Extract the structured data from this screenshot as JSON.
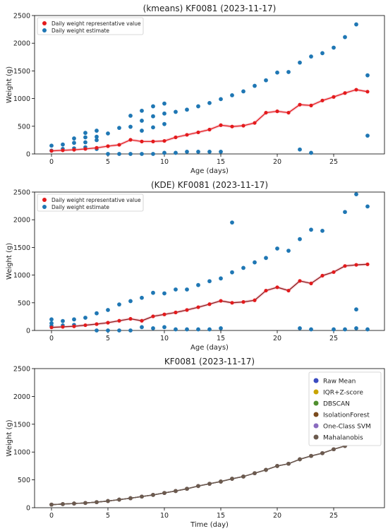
{
  "chart_data": [
    {
      "type": "scatter",
      "title": "(kmeans) KF0081 (2023-11-17)",
      "xlabel": "Age (days)",
      "ylabel": "Weight (g)",
      "xlim": [
        -1.5,
        29.5
      ],
      "ylim": [
        0,
        2500
      ],
      "xticks": [
        0,
        5,
        10,
        15,
        20,
        25
      ],
      "yticks": [
        0,
        500,
        1000,
        1500,
        2000,
        2500
      ],
      "grid": false,
      "legend_position": "top-left",
      "series": [
        {
          "name": "Daily weight representative value",
          "kind": "line+markers",
          "color": "#e41a1c",
          "points": [
            [
              0,
              55
            ],
            [
              1,
              65
            ],
            [
              2,
              75
            ],
            [
              3,
              90
            ],
            [
              4,
              110
            ],
            [
              5,
              140
            ],
            [
              6,
              165
            ],
            [
              7,
              255
            ],
            [
              8,
              225
            ],
            [
              9,
              225
            ],
            [
              10,
              235
            ],
            [
              11,
              300
            ],
            [
              12,
              345
            ],
            [
              13,
              390
            ],
            [
              14,
              440
            ],
            [
              15,
              520
            ],
            [
              16,
              495
            ],
            [
              17,
              510
            ],
            [
              18,
              560
            ],
            [
              19,
              745
            ],
            [
              20,
              770
            ],
            [
              21,
              745
            ],
            [
              22,
              890
            ],
            [
              23,
              875
            ],
            [
              24,
              965
            ],
            [
              25,
              1030
            ],
            [
              26,
              1100
            ],
            [
              27,
              1160
            ],
            [
              28,
              1125
            ]
          ]
        },
        {
          "name": "Daily weight estimate",
          "kind": "scatter",
          "color": "#1f77b4",
          "points": [
            [
              0,
              60
            ],
            [
              0,
              150
            ],
            [
              1,
              90
            ],
            [
              1,
              170
            ],
            [
              2,
              100
            ],
            [
              2,
              200
            ],
            [
              2,
              280
            ],
            [
              3,
              120
            ],
            [
              3,
              210
            ],
            [
              3,
              300
            ],
            [
              3,
              380
            ],
            [
              4,
              90
            ],
            [
              4,
              250
            ],
            [
              4,
              310
            ],
            [
              4,
              420
            ],
            [
              5,
              0
            ],
            [
              5,
              370
            ],
            [
              6,
              0
            ],
            [
              6,
              470
            ],
            [
              7,
              0
            ],
            [
              7,
              490
            ],
            [
              7,
              690
            ],
            [
              8,
              0
            ],
            [
              8,
              420
            ],
            [
              8,
              600
            ],
            [
              8,
              780
            ],
            [
              9,
              0
            ],
            [
              9,
              480
            ],
            [
              9,
              680
            ],
            [
              9,
              860
            ],
            [
              10,
              20
            ],
            [
              10,
              540
            ],
            [
              10,
              730
            ],
            [
              10,
              910
            ],
            [
              11,
              20
            ],
            [
              11,
              760
            ],
            [
              12,
              40
            ],
            [
              12,
              800
            ],
            [
              13,
              40
            ],
            [
              13,
              860
            ],
            [
              14,
              40
            ],
            [
              14,
              920
            ],
            [
              15,
              40
            ],
            [
              15,
              990
            ],
            [
              16,
              1060
            ],
            [
              17,
              1130
            ],
            [
              18,
              1230
            ],
            [
              19,
              1330
            ],
            [
              20,
              1470
            ],
            [
              21,
              1480
            ],
            [
              22,
              80
            ],
            [
              22,
              1650
            ],
            [
              23,
              20
            ],
            [
              23,
              1760
            ],
            [
              24,
              1820
            ],
            [
              25,
              1920
            ],
            [
              26,
              2110
            ],
            [
              27,
              2340
            ],
            [
              28,
              330
            ],
            [
              28,
              1420
            ]
          ]
        }
      ]
    },
    {
      "type": "scatter",
      "title": "(KDE) KF0081 (2023-11-17)",
      "xlabel": "Age (days)",
      "ylabel": "Weight (g)",
      "xlim": [
        -1.5,
        29.5
      ],
      "ylim": [
        0,
        2500
      ],
      "xticks": [
        0,
        5,
        10,
        15,
        20,
        25
      ],
      "yticks": [
        0,
        500,
        1000,
        1500,
        2000,
        2500
      ],
      "grid": false,
      "legend_position": "top-left",
      "series": [
        {
          "name": "Daily weight representative value",
          "kind": "line+markers",
          "color": "#e41a1c",
          "line_color": "#8b1a1a",
          "points": [
            [
              0,
              55
            ],
            [
              1,
              65
            ],
            [
              2,
              75
            ],
            [
              3,
              95
            ],
            [
              4,
              115
            ],
            [
              5,
              140
            ],
            [
              6,
              175
            ],
            [
              7,
              210
            ],
            [
              8,
              175
            ],
            [
              9,
              255
            ],
            [
              10,
              290
            ],
            [
              11,
              325
            ],
            [
              12,
              370
            ],
            [
              13,
              420
            ],
            [
              14,
              475
            ],
            [
              15,
              535
            ],
            [
              16,
              500
            ],
            [
              17,
              515
            ],
            [
              18,
              545
            ],
            [
              19,
              720
            ],
            [
              20,
              780
            ],
            [
              21,
              720
            ],
            [
              22,
              895
            ],
            [
              23,
              850
            ],
            [
              24,
              990
            ],
            [
              25,
              1055
            ],
            [
              26,
              1165
            ],
            [
              27,
              1185
            ],
            [
              28,
              1195
            ]
          ]
        },
        {
          "name": "Daily weight estimate",
          "kind": "scatter",
          "color": "#1f77b4",
          "points": [
            [
              0,
              80
            ],
            [
              0,
              130
            ],
            [
              0,
              200
            ],
            [
              1,
              90
            ],
            [
              1,
              170
            ],
            [
              2,
              100
            ],
            [
              2,
              200
            ],
            [
              3,
              230
            ],
            [
              4,
              0
            ],
            [
              4,
              310
            ],
            [
              5,
              0
            ],
            [
              5,
              370
            ],
            [
              6,
              0
            ],
            [
              6,
              470
            ],
            [
              7,
              0
            ],
            [
              7,
              530
            ],
            [
              8,
              60
            ],
            [
              8,
              590
            ],
            [
              9,
              40
            ],
            [
              9,
              680
            ],
            [
              10,
              60
            ],
            [
              10,
              670
            ],
            [
              11,
              20
            ],
            [
              11,
              740
            ],
            [
              12,
              20
            ],
            [
              12,
              740
            ],
            [
              13,
              20
            ],
            [
              13,
              820
            ],
            [
              14,
              20
            ],
            [
              14,
              890
            ],
            [
              15,
              40
            ],
            [
              15,
              940
            ],
            [
              16,
              1050
            ],
            [
              16,
              1950
            ],
            [
              17,
              1130
            ],
            [
              18,
              1230
            ],
            [
              19,
              1310
            ],
            [
              20,
              1480
            ],
            [
              21,
              1440
            ],
            [
              22,
              40
            ],
            [
              22,
              1650
            ],
            [
              23,
              20
            ],
            [
              23,
              1820
            ],
            [
              24,
              1800
            ],
            [
              25,
              20
            ],
            [
              26,
              20
            ],
            [
              26,
              2140
            ],
            [
              27,
              40
            ],
            [
              27,
              380
            ],
            [
              27,
              2460
            ],
            [
              28,
              20
            ],
            [
              28,
              2240
            ]
          ]
        }
      ]
    },
    {
      "type": "line",
      "title": "KF0081 (2023-11-17)",
      "xlabel": "Time (day)",
      "ylabel": "Weight (g)",
      "xlim": [
        -1.5,
        29.5
      ],
      "ylim": [
        0,
        2500
      ],
      "xticks": [
        0,
        5,
        10,
        15,
        20,
        25
      ],
      "yticks": [
        0,
        500,
        1000,
        1500,
        2000,
        2500
      ],
      "grid": false,
      "legend_position": "top-right",
      "x": [
        0,
        1,
        2,
        3,
        4,
        5,
        6,
        7,
        8,
        9,
        10,
        11,
        12,
        13,
        14,
        15,
        16,
        17,
        18,
        19,
        20,
        21,
        22,
        23,
        24,
        25,
        26,
        27,
        28
      ],
      "series": [
        {
          "name": "Raw Mean",
          "color": "#3b4cc0",
          "values": [
            55,
            65,
            75,
            85,
            100,
            120,
            145,
            170,
            200,
            230,
            265,
            300,
            340,
            390,
            430,
            470,
            520,
            560,
            620,
            680,
            750,
            790,
            870,
            930,
            980,
            1050,
            1110,
            1170,
            1260
          ]
        },
        {
          "name": "IQR+Z-score",
          "color": "#c9a400",
          "values": [
            55,
            65,
            75,
            85,
            100,
            120,
            145,
            170,
            200,
            230,
            265,
            300,
            340,
            390,
            430,
            470,
            520,
            560,
            620,
            680,
            750,
            790,
            870,
            930,
            980,
            1050,
            1110,
            1170,
            1240
          ]
        },
        {
          "name": "DBSCAN",
          "color": "#4f8f2f",
          "values": [
            55,
            65,
            75,
            85,
            100,
            120,
            145,
            170,
            200,
            230,
            265,
            300,
            340,
            390,
            430,
            470,
            520,
            560,
            620,
            680,
            750,
            790,
            870,
            930,
            980,
            1050,
            1110,
            1170,
            1230
          ]
        },
        {
          "name": "IsolationForest",
          "color": "#7a4a1c",
          "values": [
            55,
            65,
            75,
            85,
            100,
            120,
            145,
            170,
            200,
            230,
            265,
            300,
            340,
            390,
            430,
            470,
            520,
            560,
            620,
            680,
            750,
            790,
            870,
            930,
            980,
            1050,
            1110,
            1170,
            1220
          ]
        },
        {
          "name": "One-Class SVM",
          "color": "#8a6bbf",
          "values": [
            55,
            65,
            75,
            85,
            100,
            120,
            145,
            170,
            200,
            230,
            265,
            300,
            340,
            390,
            430,
            470,
            520,
            560,
            620,
            680,
            750,
            790,
            870,
            930,
            980,
            1050,
            1110,
            1170,
            1230
          ]
        },
        {
          "name": "Mahalanobis",
          "color": "#6b5a4e",
          "values": [
            55,
            65,
            75,
            85,
            100,
            120,
            145,
            170,
            200,
            230,
            265,
            300,
            340,
            390,
            430,
            470,
            520,
            560,
            620,
            680,
            750,
            790,
            870,
            930,
            980,
            1050,
            1110,
            1170,
            1240
          ]
        }
      ]
    }
  ]
}
